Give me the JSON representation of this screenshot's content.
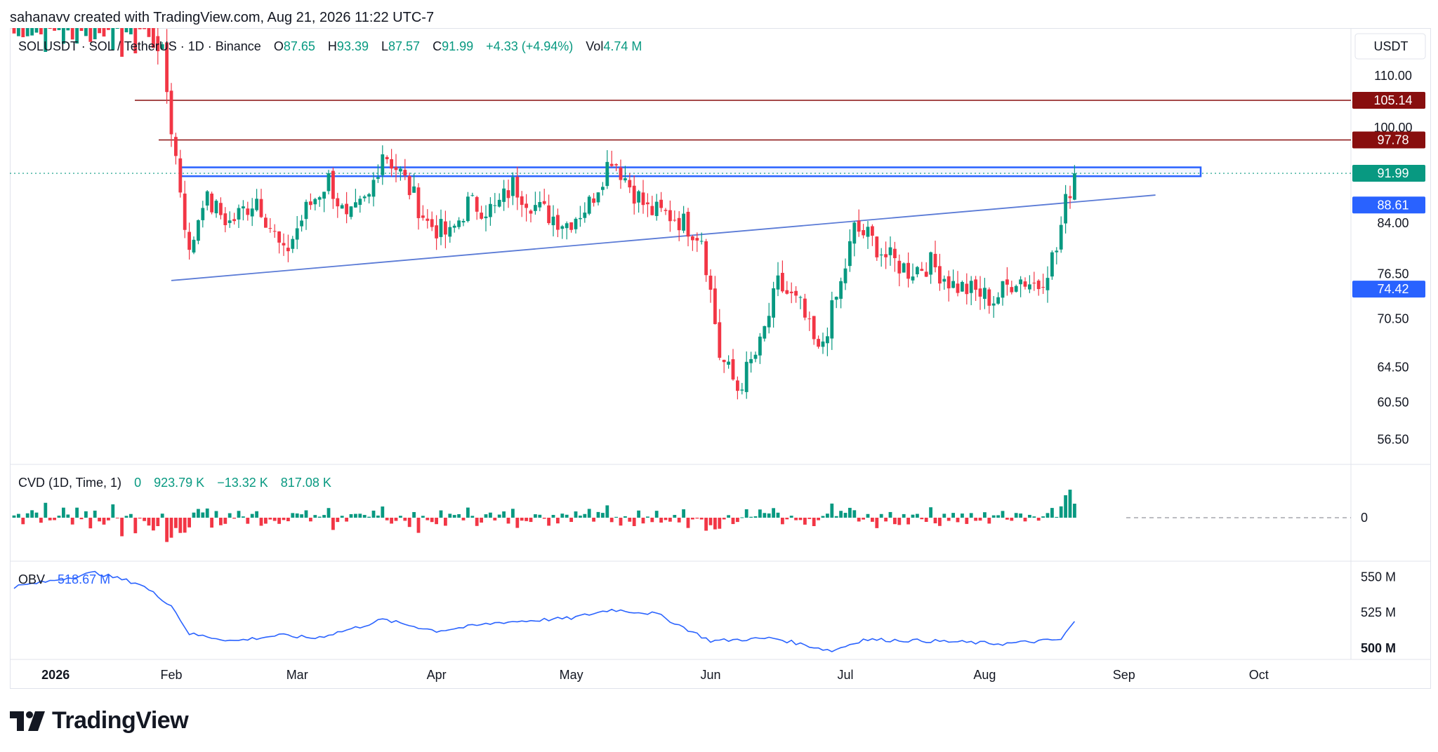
{
  "header": {
    "attribution": "sahanavv created with TradingView.com, Aug 21, 2026 11:22 UTC-7"
  },
  "legend": {
    "symbol": "SOLUSDT · SOL / TetherUS · 1D · Binance",
    "o_label": "O",
    "o_value": "87.65",
    "h_label": "H",
    "h_value": "93.39",
    "l_label": "L",
    "l_value": "87.57",
    "c_label": "C",
    "c_value": "91.99",
    "change": "+4.33 (+4.94%)",
    "vol_label": "Vol",
    "vol_value": "4.74 M"
  },
  "cvd_legend": {
    "label": "CVD (1D, Time, 1)",
    "v0": "0",
    "v1": "923.79 K",
    "v2": "−13.32 K",
    "v3": "817.08 K"
  },
  "obv_legend": {
    "label": "OBV",
    "value": "518.67 M"
  },
  "price_axis": {
    "currency": "USDT",
    "ticks": [
      "110.00",
      "100.00",
      "84.00",
      "76.50",
      "70.50",
      "64.50",
      "60.50",
      "56.50"
    ]
  },
  "price_badges": [
    {
      "value": "105.14",
      "color": "#880e0e"
    },
    {
      "value": "97.78",
      "color": "#880e0e"
    },
    {
      "value": "91.99",
      "color": "#089981"
    },
    {
      "value": "88.61",
      "color": "#2962ff"
    },
    {
      "value": "74.42",
      "color": "#2962ff"
    }
  ],
  "cvd_axis": {
    "ticks": [
      "0"
    ]
  },
  "obv_axis": {
    "ticks": [
      "550 M",
      "525 M",
      "500 M"
    ]
  },
  "time_axis": {
    "labels": [
      "2026",
      "Feb",
      "Mar",
      "Apr",
      "May",
      "Jun",
      "Jul",
      "Aug",
      "Sep",
      "Oct"
    ]
  },
  "brand": {
    "name": "TradingView"
  },
  "colors": {
    "up": "#089981",
    "down": "#f23645",
    "blue": "#2962ff",
    "resistance": "#880e0e",
    "obv": "#2962ff"
  },
  "chart_data": {
    "type": "candlestick",
    "title": "SOLUSDT · SOL / TetherUS · 1D · Binance",
    "y_scale": "log",
    "price_range": [
      54,
      120
    ],
    "x_start": "2025-12-28",
    "x_labels": [
      "2026",
      "Feb",
      "Mar",
      "Apr",
      "May",
      "Jun",
      "Jul",
      "Aug",
      "Sep",
      "Oct"
    ],
    "price_path": [
      [
        "2025-12-28",
        122
      ],
      [
        "2026-01-04",
        128
      ],
      [
        "2026-01-12",
        136
      ],
      [
        "2026-01-20",
        134
      ],
      [
        "2026-01-26",
        125
      ],
      [
        "2026-01-30",
        114
      ],
      [
        "2026-02-01",
        100
      ],
      [
        "2026-02-05",
        79
      ],
      [
        "2026-02-08",
        88
      ],
      [
        "2026-02-14",
        84
      ],
      [
        "2026-02-20",
        88
      ],
      [
        "2026-02-26",
        79
      ],
      [
        "2026-03-03",
        86
      ],
      [
        "2026-03-08",
        91
      ],
      [
        "2026-03-12",
        84
      ],
      [
        "2026-03-17",
        88
      ],
      [
        "2026-03-20",
        96
      ],
      [
        "2026-03-24",
        92
      ],
      [
        "2026-03-30",
        84
      ],
      [
        "2026-04-04",
        82
      ],
      [
        "2026-04-08",
        87
      ],
      [
        "2026-04-14",
        86
      ],
      [
        "2026-04-18",
        90
      ],
      [
        "2026-04-24",
        86
      ],
      [
        "2026-04-30",
        84
      ],
      [
        "2026-05-05",
        87
      ],
      [
        "2026-05-10",
        95
      ],
      [
        "2026-05-14",
        90
      ],
      [
        "2026-05-18",
        86
      ],
      [
        "2026-05-24",
        85
      ],
      [
        "2026-05-30",
        82
      ],
      [
        "2026-06-03",
        66
      ],
      [
        "2026-06-07",
        62
      ],
      [
        "2026-06-12",
        67
      ],
      [
        "2026-06-16",
        75
      ],
      [
        "2026-06-21",
        72
      ],
      [
        "2026-06-25",
        66
      ],
      [
        "2026-06-30",
        75
      ],
      [
        "2026-07-03",
        83
      ],
      [
        "2026-07-06",
        82
      ],
      [
        "2026-07-10",
        79
      ],
      [
        "2026-07-15",
        77
      ],
      [
        "2026-07-20",
        78
      ],
      [
        "2026-07-25",
        75
      ],
      [
        "2026-07-30",
        74
      ],
      [
        "2026-08-03",
        73
      ],
      [
        "2026-08-08",
        76
      ],
      [
        "2026-08-13",
        75
      ],
      [
        "2026-08-17",
        80
      ],
      [
        "2026-08-19",
        87
      ],
      [
        "2026-08-21",
        91.99
      ]
    ],
    "last_candle": {
      "open": 87.65,
      "high": 93.39,
      "low": 87.57,
      "close": 91.99,
      "volume": "4.74 M"
    },
    "horizontal_levels": [
      105.14,
      97.78
    ],
    "resistance_zone": [
      91.5,
      93.0
    ],
    "trendline": {
      "from": [
        "2026-02-01",
        75.6
      ],
      "to": [
        "2026-09-08",
        88.4
      ]
    },
    "cvd_values": {
      "last": 817.08,
      "unit": "K"
    },
    "obv_values": [
      [
        "2025-12-28",
        543
      ],
      [
        "2026-01-05",
        547
      ],
      [
        "2026-01-15",
        553
      ],
      [
        "2026-01-25",
        545
      ],
      [
        "2026-02-01",
        530
      ],
      [
        "2026-02-05",
        510
      ],
      [
        "2026-02-15",
        505
      ],
      [
        "2026-02-25",
        509
      ],
      [
        "2026-03-05",
        507
      ],
      [
        "2026-03-15",
        515
      ],
      [
        "2026-03-20",
        520
      ],
      [
        "2026-04-01",
        512
      ],
      [
        "2026-04-15",
        518
      ],
      [
        "2026-05-01",
        521
      ],
      [
        "2026-05-10",
        527
      ],
      [
        "2026-05-20",
        524
      ],
      [
        "2026-06-01",
        505
      ],
      [
        "2026-06-15",
        507
      ],
      [
        "2026-06-28",
        498
      ],
      [
        "2026-07-05",
        506
      ],
      [
        "2026-07-20",
        505
      ],
      [
        "2026-08-05",
        503
      ],
      [
        "2026-08-18",
        506
      ],
      [
        "2026-08-21",
        518.67
      ]
    ],
    "obv_range": [
      495,
      558
    ]
  }
}
